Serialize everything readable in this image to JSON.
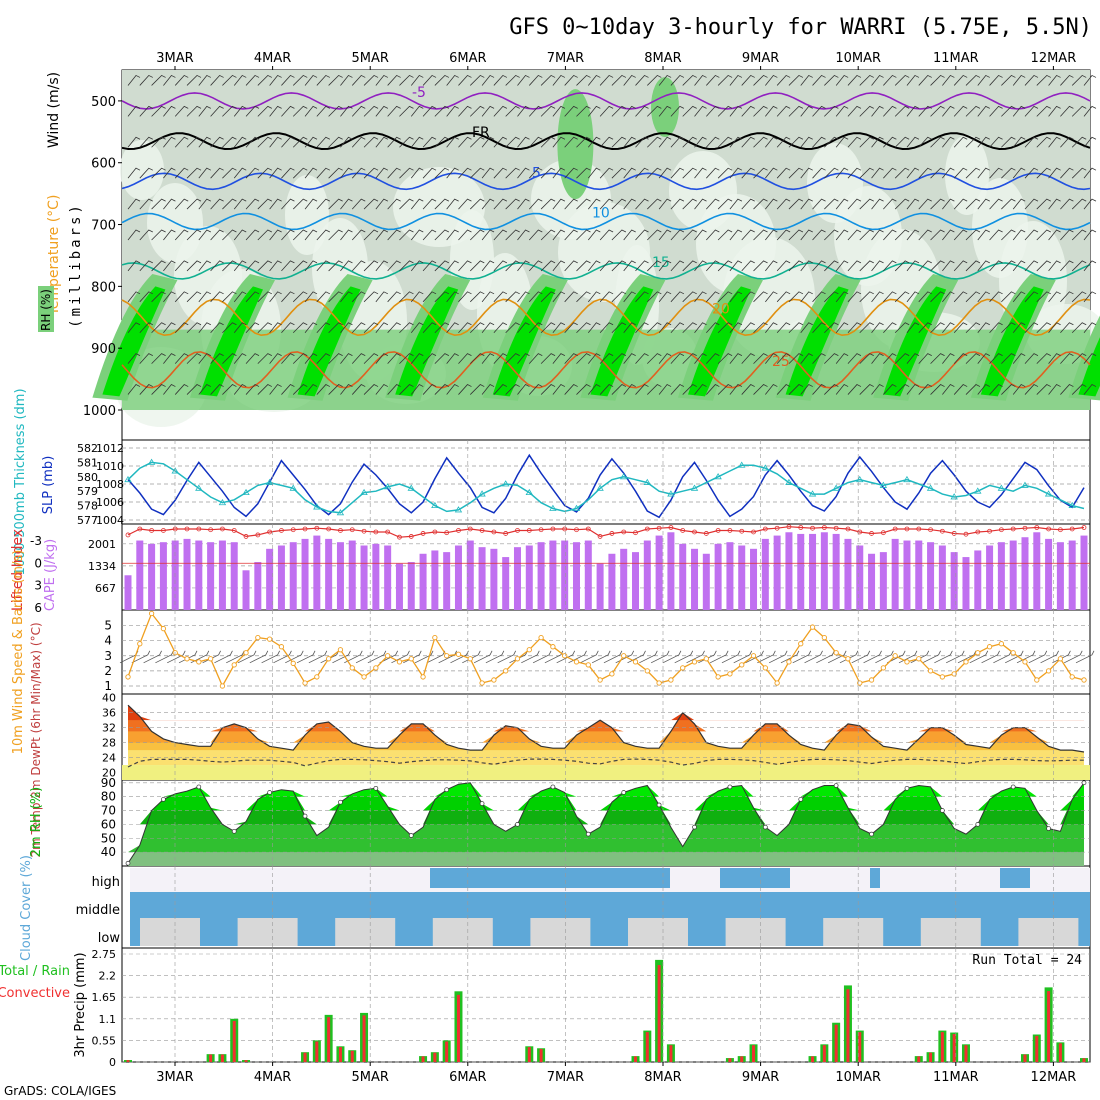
{
  "title": "GFS 0~10day 3-hourly for WARRI (5.75E, 5.5N)",
  "credit": "GrADS: COLA/IGES",
  "dates": [
    "3MAR",
    "4MAR",
    "5MAR",
    "6MAR",
    "7MAR",
    "8MAR",
    "9MAR",
    "10MAR",
    "11MAR",
    "12MAR"
  ],
  "colors": {
    "panel_border": "#000000",
    "grid": "#9a9a9a",
    "rh_light": "#d0dcd0",
    "rh_mid": "#7bd07b",
    "rh_high": "#00e000",
    "slp": "#1030c0",
    "thickness": "#20b8c0",
    "cape": "#c070f0",
    "lifted_index": "#e03030",
    "wind10m": "#f0a020",
    "rh2m": "#10b010",
    "cloud": "#5ea8d8",
    "cloud_gap": "#d8d8d8",
    "precip_total": "#20c020",
    "precip_conv": "#f03030"
  },
  "chart_data": [
    {
      "type": "heatmap",
      "name": "upper-air",
      "ylabel": "Wind (m/s)",
      "ylabel2": "Temperature (°C)",
      "ylabel3": "(millibars)",
      "ylabel4": "RH (%)",
      "yticks": [
        500,
        600,
        700,
        800,
        900,
        1000
      ],
      "ylim": [
        1000,
        450
      ],
      "isotherms": [
        {
          "label": "-5",
          "level": 500
        },
        {
          "label": "FR",
          "level": 565
        },
        {
          "label": "5",
          "level": 630
        },
        {
          "label": "10",
          "level": 695
        },
        {
          "label": "15",
          "level": 775
        },
        {
          "label": "20",
          "level": 850
        },
        {
          "label": "25",
          "level": 935
        }
      ]
    },
    {
      "type": "line",
      "name": "slp-thickness",
      "ylabel_left": "1000-500mb Thickness (dm)",
      "ylabel_right": "SLP (mb)",
      "yticks_left": [
        577,
        578,
        579,
        580,
        581,
        582
      ],
      "yticks_right": [
        1004,
        1006,
        1008,
        1010,
        1012
      ],
      "series": [
        {
          "name": "SLP (mb)",
          "axis": "right",
          "values": [
            1008.5,
            1007.0,
            1005.2,
            1004.6,
            1006.2,
            1008.4,
            1010.4,
            1008.8,
            1007.2,
            1005.4,
            1004.4,
            1005.8,
            1008.2,
            1010.6,
            1009.0,
            1007.4,
            1005.6,
            1004.6,
            1005.8,
            1008.2,
            1010.2,
            1009.0,
            1007.5,
            1005.8,
            1004.8,
            1006.0,
            1008.6,
            1010.9,
            1009.2,
            1007.6,
            1005.4,
            1004.8,
            1006.4,
            1009.0,
            1011.2,
            1009.2,
            1007.4,
            1005.6,
            1004.9,
            1006.4,
            1009.0,
            1010.8,
            1009.2,
            1007.2,
            1005.0,
            1004.3,
            1006.2,
            1008.8,
            1010.4,
            1008.4,
            1006.2,
            1004.4,
            1005.2,
            1006.6,
            1009.0,
            1010.6,
            1009.0,
            1007.2,
            1005.6,
            1005.0,
            1006.6,
            1009.2,
            1011.0,
            1009.4,
            1007.6,
            1006.0,
            1005.2,
            1007.0,
            1009.2,
            1010.6,
            1009.0,
            1007.2,
            1006.0,
            1005.4,
            1006.8,
            1008.6,
            1010.4,
            1009.6,
            1007.8,
            1006.2,
            1005.4,
            1007.6
          ]
        },
        {
          "name": "Thickness (dm)",
          "axis": "left",
          "values": [
            579.8,
            580.6,
            581.0,
            580.9,
            580.4,
            579.8,
            579.2,
            578.6,
            578.2,
            578.4,
            578.9,
            579.4,
            579.6,
            579.4,
            579.2,
            578.4,
            577.9,
            577.6,
            577.5,
            578.2,
            578.9,
            579.0,
            579.3,
            579.5,
            579.2,
            578.6,
            578.0,
            577.6,
            577.7,
            578.2,
            578.8,
            579.2,
            579.5,
            579.4,
            578.9,
            578.2,
            577.8,
            577.6,
            577.8,
            578.4,
            579.2,
            579.8,
            580.0,
            579.8,
            579.6,
            579.0,
            578.8,
            579.0,
            579.2,
            579.6,
            580.0,
            580.4,
            580.8,
            580.8,
            580.6,
            580.2,
            579.6,
            579.2,
            578.8,
            578.8,
            579.2,
            579.6,
            579.8,
            579.6,
            579.4,
            579.6,
            579.8,
            579.5,
            579.2,
            578.8,
            578.6,
            578.7,
            579.0,
            579.4,
            579.2,
            579.0,
            579.4,
            579.2,
            578.8,
            578.4,
            578.0,
            577.8
          ]
        }
      ]
    },
    {
      "type": "bar",
      "name": "cape-li",
      "ylabel_left": "Lifted Index",
      "ylabel_right": "CAPE (J/kg)",
      "yticks_left": [
        -3,
        0,
        3,
        6
      ],
      "yticks_right": [
        667,
        1334,
        2001
      ],
      "series": [
        {
          "name": "CAPE (J/kg)",
          "values": [
            1050,
            2100,
            2000,
            2050,
            2100,
            2150,
            2100,
            2050,
            2100,
            2050,
            1200,
            1450,
            1850,
            1950,
            2050,
            2150,
            2250,
            2150,
            2050,
            2100,
            1950,
            2000,
            1950,
            1400,
            1450,
            1700,
            1800,
            1750,
            1950,
            2100,
            1900,
            1850,
            1600,
            1900,
            1950,
            2050,
            2100,
            2100,
            2050,
            2100,
            1400,
            1700,
            1850,
            1750,
            2100,
            2250,
            2350,
            2000,
            1850,
            1700,
            2000,
            2050,
            1950,
            1850,
            2150,
            2250,
            2350,
            2300,
            2300,
            2350,
            2300,
            2150,
            1950,
            1700,
            1750,
            2150,
            2100,
            2100,
            2050,
            1950,
            1750,
            1600,
            1800,
            1950,
            2050,
            2100,
            2200,
            2350,
            2150,
            2050,
            2100,
            2250
          ]
        },
        {
          "name": "Lifted Index",
          "values": [
            -3.8,
            -4.6,
            -4.4,
            -4.4,
            -4.6,
            -4.6,
            -4.6,
            -4.5,
            -4.6,
            -4.4,
            -3.6,
            -3.8,
            -4.2,
            -4.4,
            -4.5,
            -4.6,
            -4.7,
            -4.6,
            -4.4,
            -4.5,
            -4.3,
            -4.2,
            -4.2,
            -3.5,
            -3.6,
            -4.0,
            -4.2,
            -4.1,
            -4.4,
            -4.6,
            -4.4,
            -4.2,
            -4.0,
            -4.4,
            -4.4,
            -4.5,
            -4.6,
            -4.6,
            -4.5,
            -4.6,
            -3.6,
            -4.0,
            -4.2,
            -4.1,
            -4.6,
            -4.7,
            -4.8,
            -4.4,
            -4.2,
            -4.0,
            -4.4,
            -4.4,
            -4.3,
            -4.2,
            -4.6,
            -4.7,
            -4.9,
            -4.8,
            -4.7,
            -4.8,
            -4.7,
            -4.6,
            -4.2,
            -4.0,
            -4.1,
            -4.6,
            -4.6,
            -4.6,
            -4.5,
            -4.3,
            -4.0,
            -3.9,
            -4.2,
            -4.3,
            -4.5,
            -4.6,
            -4.7,
            -4.8,
            -4.6,
            -4.5,
            -4.6,
            -4.8
          ]
        }
      ]
    },
    {
      "type": "line",
      "name": "wind10m",
      "ylabel": "10m Wind Speed & Barbs (m/s)",
      "yticks": [
        1,
        2,
        3,
        4,
        5
      ],
      "series": [
        {
          "name": "10m Wind Speed",
          "values": [
            1.6,
            3.8,
            5.8,
            4.8,
            3.2,
            2.8,
            2.6,
            2.8,
            1.0,
            2.4,
            3.2,
            4.2,
            4.1,
            3.6,
            2.5,
            1.2,
            1.6,
            2.8,
            3.4,
            2.2,
            1.6,
            2.2,
            3.0,
            2.6,
            2.8,
            1.6,
            4.2,
            3.0,
            3.1,
            2.8,
            1.2,
            1.4,
            2.0,
            2.8,
            3.4,
            4.2,
            3.6,
            3.0,
            2.6,
            2.4,
            1.4,
            1.8,
            3.0,
            2.6,
            2.0,
            1.2,
            1.4,
            2.2,
            2.6,
            2.8,
            1.6,
            1.8,
            2.4,
            3.0,
            2.2,
            1.2,
            2.6,
            3.8,
            4.9,
            4.2,
            3.2,
            2.8,
            1.2,
            1.4,
            2.2,
            3.0,
            2.6,
            2.8,
            2.0,
            1.6,
            1.8,
            2.6,
            3.2,
            3.6,
            3.8,
            3.2,
            2.6,
            1.4,
            2.0,
            2.8,
            1.6,
            1.4
          ]
        }
      ]
    },
    {
      "type": "area",
      "name": "temp2m",
      "ylabel": "2m Temp 2m DewPt (6hr Min/Max) (°C)",
      "yticks": [
        20,
        24,
        28,
        32,
        36,
        40
      ],
      "series": [
        {
          "name": "2m Temp",
          "values": [
            38,
            35,
            31,
            29,
            28,
            27.5,
            27,
            27,
            32,
            33,
            32,
            29,
            27,
            26.5,
            26,
            30,
            33,
            33.5,
            31,
            28,
            27,
            26.5,
            26.5,
            30,
            33,
            33,
            30,
            27.5,
            26.5,
            26,
            26,
            30,
            32.5,
            32,
            29,
            27,
            26.5,
            26.5,
            30,
            32,
            34,
            32,
            28,
            27,
            26.5,
            26.5,
            31,
            36,
            33,
            28,
            27,
            26.5,
            26.5,
            30,
            33,
            33,
            30,
            27.5,
            26.5,
            26,
            30,
            33,
            32.5,
            29.5,
            27,
            26.5,
            26,
            29,
            32,
            32,
            30,
            27.5,
            27,
            26.5,
            30,
            32,
            32,
            29.5,
            27,
            26,
            26,
            25.5
          ]
        },
        {
          "name": "2m DewPt",
          "values": [
            21.5,
            23,
            23.5,
            23.5,
            23.5,
            23.5,
            23.3,
            23,
            22.8,
            23,
            23.3,
            23.3,
            23.3,
            23,
            22.7,
            21.8,
            22.5,
            23.2,
            23.5,
            23.5,
            23.4,
            23.2,
            22.9,
            22.5,
            22.9,
            23.2,
            23.4,
            23.4,
            23.3,
            23.1,
            22.6,
            22.2,
            22.8,
            23.3,
            23.6,
            23.6,
            23.5,
            23.3,
            23,
            22.5,
            22.3,
            23,
            23.5,
            23.6,
            23.5,
            23.3,
            22.8,
            22,
            22.4,
            23.2,
            23.5,
            23.5,
            23.4,
            23.2,
            22.7,
            22.2,
            22.7,
            23.2,
            23.5,
            23.5,
            23.4,
            23.2,
            22.8,
            22.4,
            22.9,
            23.3,
            23.5,
            23.5,
            23.3,
            23.1,
            22.7,
            22.4,
            22.9,
            23.3,
            23.5,
            23.5,
            23.4,
            23.2,
            23.1,
            23.2,
            23.3,
            23.3
          ]
        }
      ]
    },
    {
      "type": "area",
      "name": "rh2m",
      "ylabel": "2m RH (%)",
      "yticks": [
        40,
        50,
        60,
        70,
        80,
        90
      ],
      "series": [
        {
          "name": "2m RH",
          "values": [
            32,
            45,
            70,
            78,
            82,
            84,
            87,
            72,
            60,
            55,
            62,
            78,
            83,
            85,
            84,
            66,
            52,
            58,
            76,
            82,
            85,
            86,
            73,
            60,
            52,
            58,
            78,
            85,
            89,
            90,
            75,
            60,
            55,
            60,
            78,
            84,
            87,
            83,
            66,
            53,
            58,
            76,
            83,
            86,
            88,
            74,
            58,
            44,
            58,
            78,
            84,
            87,
            88,
            72,
            58,
            52,
            60,
            78,
            85,
            88,
            88,
            72,
            57,
            53,
            60,
            78,
            86,
            88,
            87,
            70,
            57,
            53,
            60,
            78,
            84,
            87,
            86,
            70,
            57,
            55,
            78,
            90
          ]
        }
      ]
    },
    {
      "type": "heatmap",
      "name": "cloud-cover",
      "ylabel": "Cloud Cover (%)",
      "ytick_labels": [
        "high",
        "middle",
        "low"
      ]
    },
    {
      "type": "bar",
      "name": "precip",
      "ylabel": "3hr Precip (mm)",
      "ylabel2": "Total / Rain",
      "ylabel3": "Convective",
      "annotation": "Run Total = 24",
      "yticks": [
        0,
        0.55,
        1.1,
        1.65,
        2.2,
        2.75
      ],
      "ylim": [
        0,
        2.75
      ],
      "values": [
        0.05,
        0,
        0,
        0,
        0,
        0,
        0,
        0.2,
        0.2,
        1.1,
        0.05,
        0,
        0,
        0,
        0,
        0.25,
        0.55,
        1.2,
        0.4,
        0.3,
        1.25,
        0,
        0,
        0,
        0,
        0.15,
        0.25,
        0.55,
        1.8,
        0,
        0,
        0,
        0,
        0,
        0.4,
        0.35,
        0,
        0,
        0,
        0,
        0,
        0,
        0,
        0.15,
        0.8,
        2.6,
        0.45,
        0,
        0,
        0,
        0,
        0.1,
        0.15,
        0.45,
        0,
        0,
        0,
        0,
        0.15,
        0.45,
        1.0,
        1.95,
        0.8,
        0,
        0,
        0,
        0,
        0.15,
        0.25,
        0.8,
        0.75,
        0.45,
        0,
        0,
        0,
        0,
        0.2,
        0.7,
        1.9,
        0.5,
        0,
        0.1
      ]
    }
  ]
}
